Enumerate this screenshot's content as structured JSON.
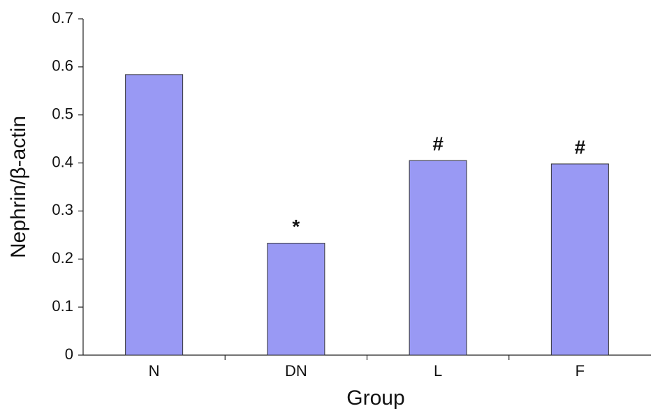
{
  "chart_data": {
    "type": "bar",
    "x_label": "Group",
    "y_label": "Nephrin/β-actin",
    "categories": [
      "N",
      "DN",
      "L",
      "F"
    ],
    "values": [
      0.584,
      0.233,
      0.405,
      0.398
    ],
    "annotations": [
      null,
      "*",
      "#",
      "#"
    ],
    "color": "#9999f4",
    "ylim": [
      0,
      0.7
    ],
    "yticks": [
      0,
      0.1,
      0.2,
      0.3,
      0.4,
      0.5,
      0.6,
      0.7
    ],
    "grid": false
  }
}
